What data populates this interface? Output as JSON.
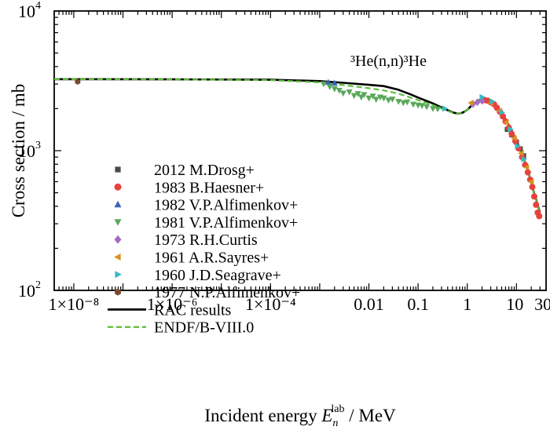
{
  "chart_data": {
    "type": "scatter",
    "title": "",
    "annotation": "³He(n,n)³He",
    "xlabel": {
      "prefix": "Incident energy ",
      "var": "E",
      "sub": "n",
      "sup": "lab",
      "suffix": " / MeV"
    },
    "ylabel": "Cross section / mb",
    "x_scale": "log",
    "y_scale": "log",
    "xlim": [
      4e-09,
      40
    ],
    "ylim": [
      100,
      10000
    ],
    "grid": false,
    "legend_position": "center-left",
    "x_ticks": [
      {
        "value": 1e-08,
        "label": "1×10⁻⁸"
      },
      {
        "value": 1e-06,
        "label": "1×10⁻⁶"
      },
      {
        "value": 0.0001,
        "label": "1×10⁻⁴"
      },
      {
        "value": 0.01,
        "label": "0.01"
      },
      {
        "value": 0.1,
        "label": "0.1"
      },
      {
        "value": 1,
        "label": "1"
      },
      {
        "value": 10,
        "label": "10"
      },
      {
        "value": 30,
        "label": "30"
      }
    ],
    "y_ticks": [
      {
        "value": 100,
        "base": "10",
        "exp": "2"
      },
      {
        "value": 1000,
        "base": "10",
        "exp": "3"
      },
      {
        "value": 10000,
        "base": "10",
        "exp": "4"
      }
    ],
    "series": [
      {
        "name": "2012 M.Drosg+",
        "marker": "square",
        "color": "#4a4a4a",
        "points": [
          [
            6.5,
            1420
          ],
          [
            8.0,
            1300
          ],
          [
            10,
            1150
          ],
          [
            12,
            1030
          ],
          [
            14,
            920
          ]
        ]
      },
      {
        "name": "1983 B.Haesner+",
        "marker": "circle",
        "color": "#e8413c",
        "points": [
          [
            2.3,
            2300
          ],
          [
            2.6,
            2280
          ],
          [
            3.0,
            2220
          ],
          [
            3.5,
            2150
          ],
          [
            4.0,
            2030
          ],
          [
            4.6,
            1900
          ],
          [
            5.3,
            1760
          ],
          [
            6.0,
            1620
          ],
          [
            7.0,
            1460
          ],
          [
            8.0,
            1320
          ],
          [
            9.5,
            1170
          ],
          [
            11,
            1040
          ],
          [
            13,
            900
          ],
          [
            15,
            790
          ],
          [
            17,
            700
          ],
          [
            19,
            620
          ],
          [
            21,
            550
          ],
          [
            23,
            470
          ],
          [
            25,
            410
          ],
          [
            27,
            360
          ],
          [
            29,
            340
          ]
        ]
      },
      {
        "name": "1982 V.P.Alfimenkov+",
        "marker": "triangle-up",
        "color": "#3a63b8",
        "points": [
          [
            0.0015,
            3080
          ],
          [
            0.002,
            3040
          ]
        ]
      },
      {
        "name": "1981 V.P.Alfimenkov+",
        "marker": "triangle-down",
        "color": "#5aa85a",
        "points": [
          [
            0.0012,
            3010
          ],
          [
            0.0016,
            2870
          ],
          [
            0.002,
            2770
          ],
          [
            0.0025,
            2700
          ],
          [
            0.003,
            2580
          ],
          [
            0.004,
            2630
          ],
          [
            0.005,
            2480
          ],
          [
            0.006,
            2560
          ],
          [
            0.007,
            2420
          ],
          [
            0.008,
            2520
          ],
          [
            0.01,
            2380
          ],
          [
            0.012,
            2460
          ],
          [
            0.014,
            2330
          ],
          [
            0.017,
            2420
          ],
          [
            0.02,
            2380
          ],
          [
            0.025,
            2300
          ],
          [
            0.03,
            2340
          ],
          [
            0.04,
            2250
          ],
          [
            0.05,
            2200
          ],
          [
            0.06,
            2230
          ],
          [
            0.08,
            2150
          ],
          [
            0.1,
            2120
          ],
          [
            0.12,
            2100
          ],
          [
            0.15,
            2060
          ],
          [
            0.2,
            2000
          ],
          [
            0.25,
            1990
          ]
        ]
      },
      {
        "name": "1973 R.H.Curtis",
        "marker": "diamond",
        "color": "#a66bbf",
        "points": [
          [
            1.3,
            2150
          ],
          [
            1.6,
            2220
          ],
          [
            2.0,
            2270
          ]
        ]
      },
      {
        "name": "1961 A.R.Sayres+",
        "marker": "triangle-left",
        "color": "#d9901c",
        "points": [
          [
            1.2,
            2200
          ],
          [
            3.0,
            2200
          ],
          [
            4.5,
            1930
          ],
          [
            6.2,
            1600
          ],
          [
            9,
            1230
          ],
          [
            12.5,
            960
          ],
          [
            16,
            760
          ],
          [
            20,
            600
          ]
        ]
      },
      {
        "name": "1960 J.D.Seagrave+",
        "marker": "triangle-right",
        "color": "#38b8c4",
        "points": [
          [
            0.35,
            2000
          ],
          [
            2.0,
            2420
          ],
          [
            3.2,
            2250
          ],
          [
            5.0,
            1880
          ],
          [
            7.5,
            1420
          ],
          [
            10.5,
            1080
          ],
          [
            14,
            870
          ]
        ]
      },
      {
        "name": "1977 N.P.Alfimenkov+",
        "marker": "hexagon",
        "color": "#7a4a30",
        "points": [
          [
            1.2e-08,
            3120
          ]
        ]
      }
    ],
    "curves": [
      {
        "name": "RAC results",
        "style": "solid",
        "color": "#000000",
        "points": [
          [
            4e-09,
            3250
          ],
          [
            1e-08,
            3250
          ],
          [
            1e-06,
            3240
          ],
          [
            0.0001,
            3220
          ],
          [
            0.001,
            3150
          ],
          [
            0.003,
            3060
          ],
          [
            0.01,
            2960
          ],
          [
            0.02,
            2900
          ],
          [
            0.04,
            2730
          ],
          [
            0.07,
            2530
          ],
          [
            0.1,
            2400
          ],
          [
            0.2,
            2180
          ],
          [
            0.35,
            1990
          ],
          [
            0.5,
            1880
          ],
          [
            0.65,
            1840
          ],
          [
            0.8,
            1870
          ],
          [
            1.0,
            1960
          ],
          [
            1.3,
            2150
          ],
          [
            1.7,
            2290
          ],
          [
            2.0,
            2320
          ],
          [
            2.5,
            2300
          ],
          [
            3.0,
            2240
          ],
          [
            4.0,
            2060
          ],
          [
            5.0,
            1860
          ],
          [
            6.5,
            1600
          ],
          [
            8.0,
            1390
          ],
          [
            10,
            1180
          ],
          [
            12,
            1010
          ],
          [
            14,
            880
          ],
          [
            16,
            770
          ],
          [
            19,
            630
          ],
          [
            22,
            520
          ],
          [
            25,
            450
          ],
          [
            28,
            390
          ],
          [
            30,
            360
          ]
        ]
      },
      {
        "name": "ENDF/B-VIII.0",
        "style": "dashed",
        "color": "#5fbf3a",
        "points": [
          [
            4e-09,
            3250
          ],
          [
            1e-08,
            3250
          ],
          [
            1e-06,
            3240
          ],
          [
            0.0001,
            3200
          ],
          [
            0.001,
            3080
          ],
          [
            0.003,
            2950
          ],
          [
            0.01,
            2800
          ],
          [
            0.02,
            2700
          ],
          [
            0.04,
            2560
          ],
          [
            0.07,
            2400
          ],
          [
            0.1,
            2300
          ],
          [
            0.2,
            2120
          ],
          [
            0.35,
            1960
          ],
          [
            0.5,
            1870
          ],
          [
            0.65,
            1840
          ],
          [
            0.8,
            1870
          ],
          [
            1.0,
            1960
          ],
          [
            1.3,
            2140
          ],
          [
            1.7,
            2280
          ],
          [
            2.0,
            2310
          ],
          [
            2.5,
            2290
          ],
          [
            3.0,
            2230
          ],
          [
            4.0,
            2050
          ],
          [
            5.0,
            1850
          ],
          [
            6.5,
            1590
          ],
          [
            8.0,
            1380
          ],
          [
            10,
            1170
          ],
          [
            12,
            1000
          ],
          [
            14,
            875
          ],
          [
            16,
            765
          ],
          [
            19,
            625
          ],
          [
            22,
            515
          ],
          [
            25,
            445
          ],
          [
            28,
            385
          ],
          [
            30,
            355
          ]
        ]
      }
    ]
  }
}
